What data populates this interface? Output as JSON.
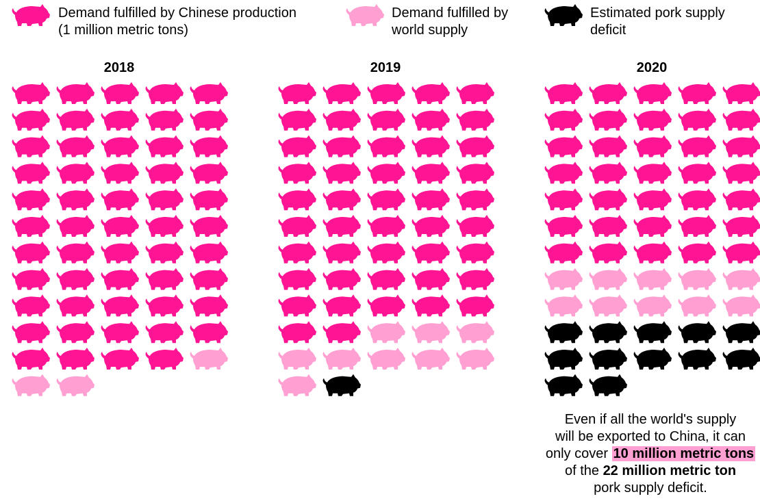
{
  "legend": [
    {
      "key": "production",
      "line1": "Demand fulfilled by Chinese production",
      "line2": "(1 million metric tons)",
      "color": "#ff1493"
    },
    {
      "key": "world",
      "line1": "Demand fulfilled by",
      "line2": "world supply",
      "color": "#ff9fd2"
    },
    {
      "key": "deficit",
      "line1": "Estimated pork supply",
      "line2": "deficit",
      "color": "#000000"
    }
  ],
  "chart_data": {
    "type": "pictograph",
    "unit": "1 million metric tons per pig icon",
    "series_colors": {
      "production": "#ff1493",
      "world": "#ff9fd2",
      "deficit": "#000000"
    },
    "years": [
      {
        "year": "2018",
        "production": 54,
        "world": 3,
        "deficit": 0
      },
      {
        "year": "2019",
        "production": 47,
        "world": 9,
        "deficit": 1
      },
      {
        "year": "2020",
        "production": 35,
        "world": 10,
        "deficit": 12
      }
    ]
  },
  "note": {
    "line1": "Even if all the world's supply",
    "line2": "will be exported to China, it can",
    "line3_pre": "only cover ",
    "line3_highlight": "10 million metric tons",
    "line4_pre": "of the ",
    "line4_bold": "22 million metric ton",
    "line5": "pork supply deficit."
  }
}
